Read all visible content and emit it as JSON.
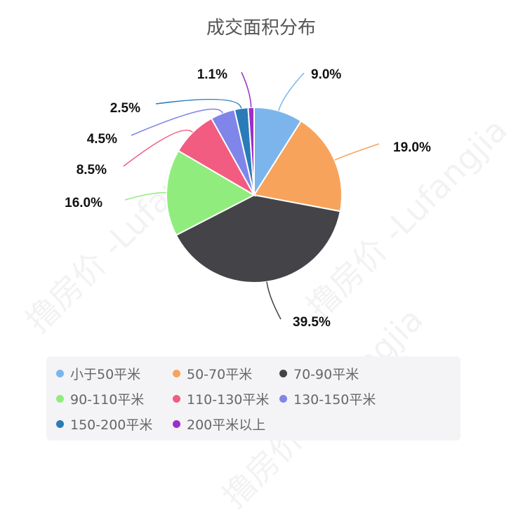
{
  "watermark_text": "撸房价 -Lufangjia",
  "chart_data": {
    "type": "pie",
    "title": "成交面积分布",
    "slices": [
      {
        "label": "小于50平米",
        "value": 9.0,
        "display": "9.0%",
        "color": "#7cb5ec"
      },
      {
        "label": "50-70平米",
        "value": 19.0,
        "display": "19.0%",
        "color": "#f7a35c"
      },
      {
        "label": "70-90平米",
        "value": 39.5,
        "display": "39.5%",
        "color": "#434348"
      },
      {
        "label": "90-110平米",
        "value": 16.0,
        "display": "16.0%",
        "color": "#90ed7d"
      },
      {
        "label": "110-130平米",
        "value": 8.5,
        "display": "8.5%",
        "color": "#f15c80"
      },
      {
        "label": "130-150平米",
        "value": 4.5,
        "display": "4.5%",
        "color": "#8085e9"
      },
      {
        "label": "150-200平米",
        "value": 2.5,
        "display": "2.5%",
        "color": "#2b7bb9"
      },
      {
        "label": "200平米以上",
        "value": 1.1,
        "display": "1.1%",
        "color": "#9b2fc9"
      }
    ],
    "legend_position": "bottom"
  }
}
